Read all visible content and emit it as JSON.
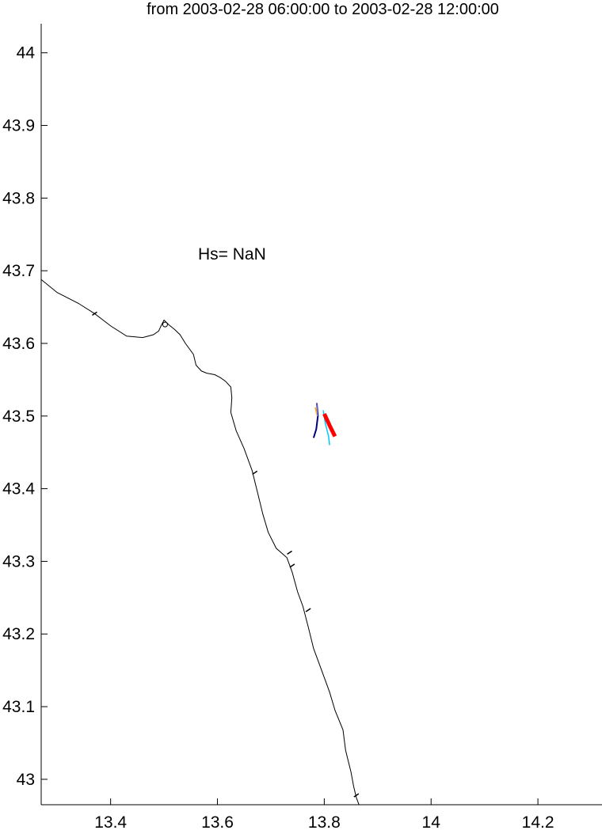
{
  "title": "from 2003-02-28 06:00:00 to 2003-02-28 12:00:00",
  "annotation": "Hs= NaN",
  "chart_data": {
    "type": "map",
    "title": "from 2003-02-28 06:00:00 to 2003-02-28 12:00:00",
    "xlabel": "",
    "ylabel": "",
    "xlim": [
      13.27,
      14.32
    ],
    "ylim": [
      42.965,
      44.04
    ],
    "x_ticks": [
      {
        "value": 13.4,
        "label": "13.4"
      },
      {
        "value": 13.6,
        "label": "13.6"
      },
      {
        "value": 13.8,
        "label": "13.8"
      },
      {
        "value": 14.0,
        "label": "14"
      },
      {
        "value": 14.2,
        "label": "14.2"
      }
    ],
    "y_ticks": [
      {
        "value": 43.0,
        "label": "43"
      },
      {
        "value": 43.1,
        "label": "43.1"
      },
      {
        "value": 43.2,
        "label": "43.2"
      },
      {
        "value": 43.3,
        "label": "43.3"
      },
      {
        "value": 43.4,
        "label": "43.4"
      },
      {
        "value": 43.5,
        "label": "43.5"
      },
      {
        "value": 43.6,
        "label": "43.6"
      },
      {
        "value": 43.7,
        "label": "43.7"
      },
      {
        "value": 43.8,
        "label": "43.8"
      },
      {
        "value": 43.9,
        "label": "43.9"
      },
      {
        "value": 44.0,
        "label": "44"
      }
    ],
    "coastline": [
      [
        13.27,
        43.688
      ],
      [
        13.3,
        43.67
      ],
      [
        13.34,
        43.655
      ],
      [
        13.37,
        43.641
      ],
      [
        13.4,
        43.624
      ],
      [
        13.43,
        43.61
      ],
      [
        13.46,
        43.608
      ],
      [
        13.48,
        43.612
      ],
      [
        13.49,
        43.617
      ],
      [
        13.495,
        43.625
      ],
      [
        13.5,
        43.632
      ],
      [
        13.51,
        43.625
      ],
      [
        13.52,
        43.619
      ],
      [
        13.53,
        43.612
      ],
      [
        13.54,
        43.6
      ],
      [
        13.555,
        43.585
      ],
      [
        13.56,
        43.57
      ],
      [
        13.57,
        43.562
      ],
      [
        13.58,
        43.559
      ],
      [
        13.595,
        43.557
      ],
      [
        13.605,
        43.553
      ],
      [
        13.615,
        43.548
      ],
      [
        13.625,
        43.54
      ],
      [
        13.627,
        43.525
      ],
      [
        13.625,
        43.505
      ],
      [
        13.635,
        43.48
      ],
      [
        13.65,
        43.455
      ],
      [
        13.665,
        43.425
      ],
      [
        13.675,
        43.395
      ],
      [
        13.685,
        43.365
      ],
      [
        13.695,
        43.34
      ],
      [
        13.71,
        43.318
      ],
      [
        13.73,
        43.305
      ],
      [
        13.74,
        43.285
      ],
      [
        13.75,
        43.258
      ],
      [
        13.76,
        43.238
      ],
      [
        13.77,
        43.21
      ],
      [
        13.78,
        43.18
      ],
      [
        13.795,
        43.15
      ],
      [
        13.81,
        43.12
      ],
      [
        13.82,
        43.095
      ],
      [
        13.835,
        43.068
      ],
      [
        13.84,
        43.04
      ],
      [
        13.85,
        43.01
      ],
      [
        13.855,
        42.99
      ],
      [
        13.86,
        42.975
      ],
      [
        13.865,
        42.965
      ]
    ],
    "coast_ticks": [
      [
        13.37,
        43.641
      ],
      [
        13.67,
        43.422
      ],
      [
        13.735,
        43.312
      ],
      [
        13.74,
        43.294
      ],
      [
        13.77,
        43.233
      ],
      [
        13.86,
        42.978
      ]
    ],
    "series": [
      {
        "color": "#000080",
        "points": [
          [
            13.786,
            43.518
          ],
          [
            13.788,
            43.5
          ],
          [
            13.785,
            43.482
          ],
          [
            13.78,
            43.47
          ]
        ],
        "width": 2
      },
      {
        "color": "#00c8ff",
        "points": [
          [
            13.798,
            43.508
          ],
          [
            13.802,
            43.49
          ],
          [
            13.808,
            43.472
          ],
          [
            13.81,
            43.46
          ]
        ],
        "width": 1.5
      },
      {
        "color": "#ff0000",
        "points": [
          [
            13.8,
            43.503
          ],
          [
            13.81,
            43.487
          ],
          [
            13.82,
            43.472
          ]
        ],
        "width": 5
      },
      {
        "color": "#ffa500",
        "points": [
          [
            13.787,
            43.5
          ],
          [
            13.783,
            43.512
          ]
        ],
        "width": 1.5
      },
      {
        "color": "#a0a0ff",
        "points": [
          [
            13.786,
            43.518
          ],
          [
            13.787,
            43.5
          ]
        ],
        "width": 1
      }
    ]
  }
}
